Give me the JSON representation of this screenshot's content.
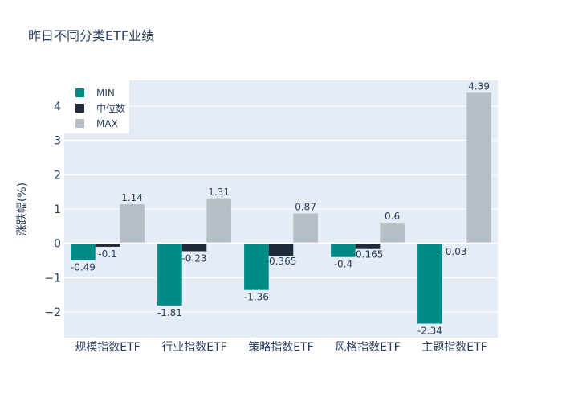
{
  "chart_data": {
    "type": "bar",
    "title": "昨日不同分类ETF业绩",
    "xlabel": "",
    "ylabel": "涨跌幅(%)",
    "ylim": [
      -2.75,
      4.75
    ],
    "yticks": [
      -2,
      -1,
      0,
      1,
      2,
      3,
      4
    ],
    "ytick_labels": [
      "−2",
      "−1",
      "0",
      "1",
      "2",
      "3",
      "4"
    ],
    "categories": [
      "规模指数ETF",
      "行业指数ETF",
      "策略指数ETF",
      "风格指数ETF",
      "主题指数ETF"
    ],
    "series": [
      {
        "name": "MIN",
        "color": "#008b86",
        "values": [
          -0.49,
          -1.81,
          -1.36,
          -0.4,
          -2.34
        ],
        "labels": [
          "-0.49",
          "-1.81",
          "-1.36",
          "-0.4",
          "-2.34"
        ]
      },
      {
        "name": "中位数",
        "color": "#1f2a3a",
        "values": [
          -0.1,
          -0.23,
          -0.365,
          -0.165,
          -0.03
        ],
        "labels": [
          "-0.1",
          "-0.23",
          "-0.365",
          "-0.165",
          "-0.03"
        ]
      },
      {
        "name": "MAX",
        "color": "#b6bec6",
        "values": [
          1.14,
          1.31,
          0.87,
          0.6,
          4.39
        ],
        "labels": [
          "1.14",
          "1.31",
          "0.87",
          "0.6",
          "4.39"
        ]
      }
    ],
    "legend_position": "top-left",
    "grid": true
  }
}
